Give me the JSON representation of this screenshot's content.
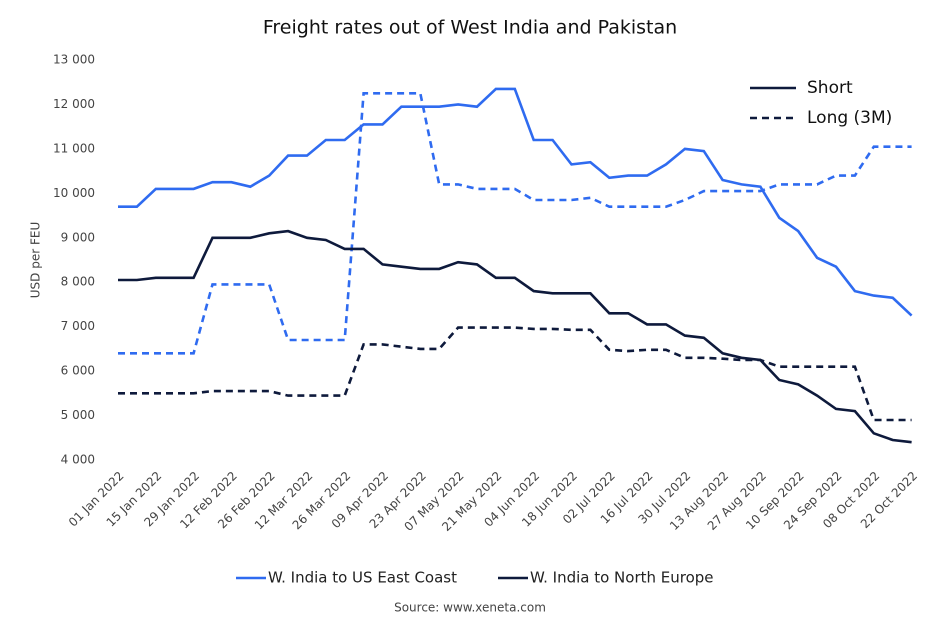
{
  "chart_data": {
    "type": "line",
    "title": "Freight rates out of West India and Pakistan",
    "y_label": "USD per FEU",
    "source": "Source: www.xeneta.com",
    "x": [
      "01 Jan 2022",
      "08 Jan 2022",
      "15 Jan 2022",
      "22 Jan 2022",
      "29 Jan 2022",
      "05 Feb 2022",
      "12 Feb 2022",
      "19 Feb 2022",
      "26 Feb 2022",
      "05 Mar 2022",
      "12 Mar 2022",
      "19 Mar 2022",
      "26 Mar 2022",
      "02 Apr 2022",
      "09 Apr 2022",
      "16 Apr 2022",
      "23 Apr 2022",
      "30 Apr 2022",
      "07 May 2022",
      "14 May 2022",
      "21 May 2022",
      "28 May 2022",
      "04 Jun 2022",
      "11 Jun 2022",
      "18 Jun 2022",
      "25 Jun 2022",
      "02 Jul 2022",
      "09 Jul 2022",
      "16 Jul 2022",
      "23 Jul 2022",
      "30 Jul 2022",
      "06 Aug 2022",
      "13 Aug 2022",
      "20 Aug 2022",
      "27 Aug 2022",
      "03 Sep 2022",
      "10 Sep 2022",
      "17 Sep 2022",
      "24 Sep 2022",
      "01 Oct 2022",
      "08 Oct 2022",
      "15 Oct 2022",
      "22 Oct 2022"
    ],
    "xlim": [
      "01 Jan 2022",
      "24 Oct 2022"
    ],
    "xticks": [
      "01 Jan 2022",
      "15 Jan 2022",
      "29 Jan 2022",
      "12 Feb 2022",
      "26 Feb 2022",
      "12 Mar 2022",
      "26 Mar 2022",
      "09 Apr 2022",
      "23 Apr 2022",
      "07 May 2022",
      "21 May 2022",
      "04 Jun 2022",
      "18 Jun 2022",
      "02 Jul 2022",
      "16 Jul 2022",
      "30 Jul 2022",
      "13 Aug 2022",
      "27 Aug 2022",
      "10 Sep 2022",
      "24 Sep 2022",
      "08 Oct 2022",
      "22 Oct 2022"
    ],
    "ylim": [
      4000,
      13000
    ],
    "yticks": [
      {
        "value": 4000,
        "label": "4 000"
      },
      {
        "value": 5000,
        "label": "5 000"
      },
      {
        "value": 6000,
        "label": "6 000"
      },
      {
        "value": 7000,
        "label": "7 000"
      },
      {
        "value": 8000,
        "label": "8 000"
      },
      {
        "value": 9000,
        "label": "9 000"
      },
      {
        "value": 10000,
        "label": "10 000"
      },
      {
        "value": 11000,
        "label": "11 000"
      },
      {
        "value": 12000,
        "label": "12 000"
      },
      {
        "value": 13000,
        "label": "13 000"
      }
    ],
    "grid": false,
    "routes": [
      {
        "name": "W. India to US East Coast",
        "color": "#2f6bf0"
      },
      {
        "name": "W. India to North Europe",
        "color": "#0e1a3c"
      }
    ],
    "terms": [
      {
        "name": "Short",
        "dash": "none"
      },
      {
        "name": "Long (3M)",
        "dash": "7 5"
      }
    ],
    "series": [
      {
        "route": 0,
        "term": 0,
        "values": [
          9700,
          9700,
          10100,
          10100,
          10100,
          10250,
          10250,
          10150,
          10400,
          10850,
          10850,
          11200,
          11200,
          11550,
          11550,
          11950,
          11950,
          11950,
          12000,
          11950,
          12350,
          12350,
          11200,
          11200,
          10650,
          10700,
          10350,
          10400,
          10400,
          10650,
          11000,
          10950,
          10300,
          10200,
          10150,
          9450,
          9150,
          8550,
          8350,
          7800,
          7700,
          7650,
          7250
        ]
      },
      {
        "route": 0,
        "term": 1,
        "values": [
          6400,
          6400,
          6400,
          6400,
          6400,
          7950,
          7950,
          7950,
          7950,
          6700,
          6700,
          6700,
          6700,
          12250,
          12250,
          12250,
          12250,
          10200,
          10200,
          10100,
          10100,
          10100,
          9850,
          9850,
          9850,
          9900,
          9700,
          9700,
          9700,
          9700,
          9850,
          10050,
          10050,
          10050,
          10050,
          10200,
          10200,
          10200,
          10400,
          10400,
          11050,
          11050,
          11050
        ]
      },
      {
        "route": 1,
        "term": 0,
        "values": [
          8050,
          8050,
          8100,
          8100,
          8100,
          9000,
          9000,
          9000,
          9100,
          9150,
          9000,
          8950,
          8750,
          8750,
          8400,
          8350,
          8300,
          8300,
          8450,
          8400,
          8100,
          8100,
          7800,
          7750,
          7750,
          7750,
          7300,
          7300,
          7050,
          7050,
          6800,
          6750,
          6400,
          6300,
          6250,
          5800,
          5700,
          5450,
          5150,
          5100,
          4600,
          4450,
          4400
        ]
      },
      {
        "route": 1,
        "term": 1,
        "values": [
          5500,
          5500,
          5500,
          5500,
          5500,
          5550,
          5550,
          5550,
          5550,
          5450,
          5450,
          5450,
          5450,
          6600,
          6600,
          6550,
          6500,
          6500,
          6980,
          6980,
          6980,
          6980,
          6950,
          6950,
          6930,
          6930,
          6480,
          6450,
          6480,
          6480,
          6300,
          6300,
          6280,
          6250,
          6250,
          6100,
          6100,
          6100,
          6100,
          6100,
          4900,
          4900,
          4900
        ]
      }
    ]
  }
}
